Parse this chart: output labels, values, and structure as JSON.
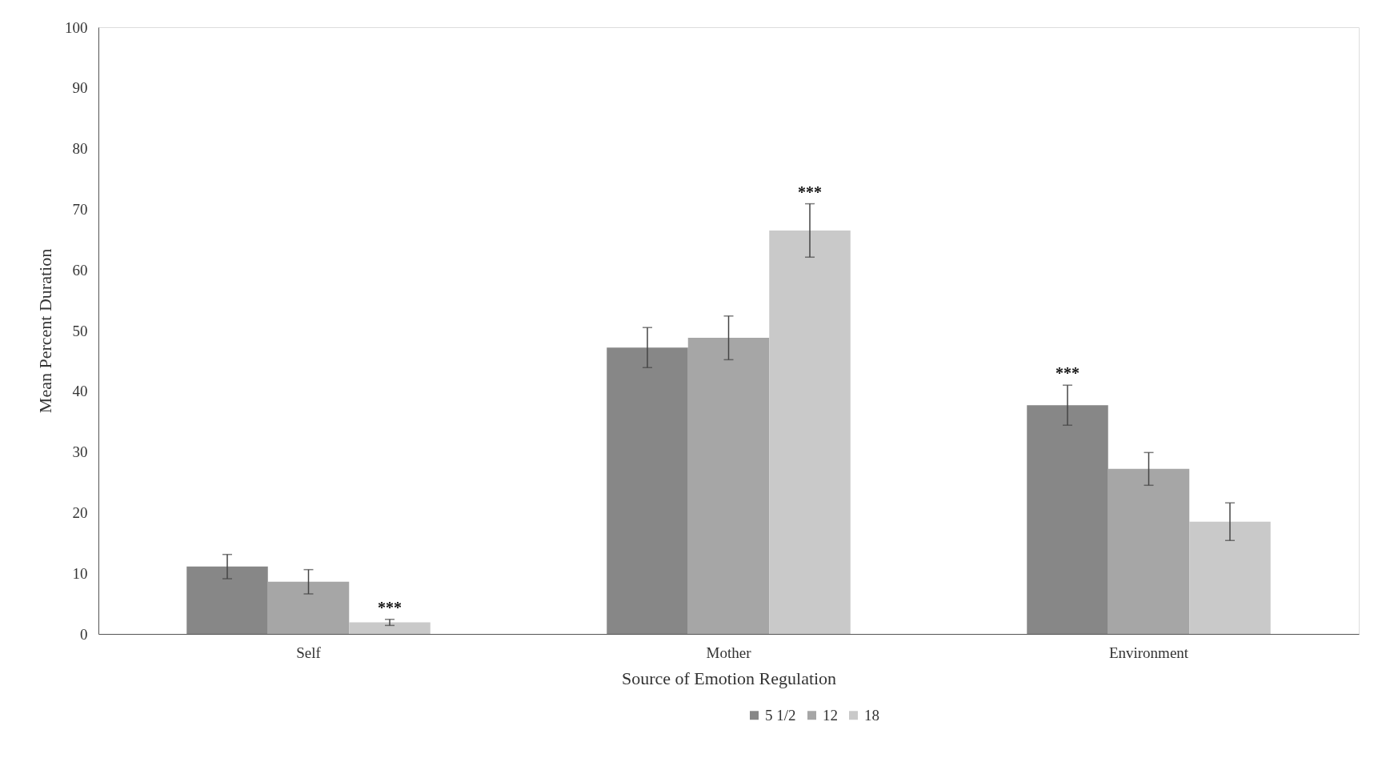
{
  "chart_data": {
    "type": "bar",
    "xlabel": "Source of Emotion Regulation",
    "ylabel": "Mean Percent Duration",
    "categories": [
      "Self",
      "Mother",
      "Environment"
    ],
    "series": [
      {
        "name": "5 1/2",
        "color": "#878787",
        "values": [
          11.1,
          47.2,
          37.7
        ],
        "errors": [
          2.0,
          3.3,
          3.3
        ],
        "value_labels": [
          null,
          null,
          "***"
        ]
      },
      {
        "name": "12",
        "color": "#a6a6a6",
        "values": [
          8.6,
          48.8,
          27.2
        ],
        "errors": [
          2.0,
          3.6,
          2.7
        ]
      },
      {
        "name": "18",
        "color": "#c9c9c9",
        "values": [
          1.9,
          66.5,
          18.5
        ],
        "errors": [
          0.5,
          4.4,
          3.1
        ],
        "value_labels": [
          "***",
          "***",
          null
        ]
      }
    ],
    "ylim": [
      0,
      100
    ],
    "yticks": [
      0,
      10,
      20,
      30,
      40,
      50,
      60,
      70,
      80,
      90,
      100
    ],
    "grid": false,
    "legend": "bottom"
  }
}
